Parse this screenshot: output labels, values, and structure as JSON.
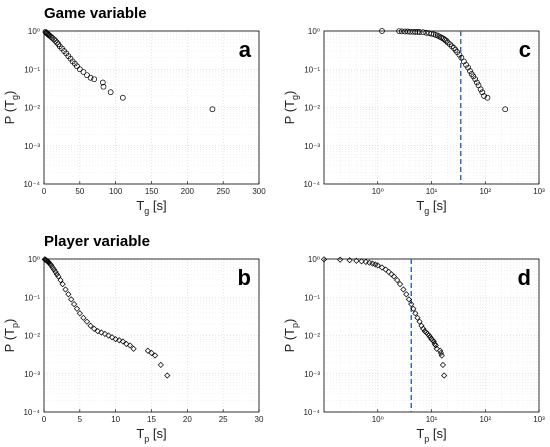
{
  "titles": {
    "game": "Game variable",
    "player": "Player variable"
  },
  "colors": {
    "marker_stroke": "#000000",
    "threshold_line": "#2a65b8",
    "grid": "#c9c9c9"
  },
  "chart_data": [
    {
      "id": "a",
      "letter": "a",
      "type": "scatter",
      "marker": "circle",
      "xscale": "linear",
      "yscale": "log",
      "xlim": [
        0,
        300
      ],
      "ylim": [
        0.0001,
        1
      ],
      "xticks": [
        0,
        50,
        100,
        150,
        200,
        250,
        300
      ],
      "xtick_labels": [
        "0",
        "50",
        "100",
        "150",
        "200",
        "250",
        "300"
      ],
      "yticks": [
        0.0001,
        0.001,
        0.01,
        0.1,
        1
      ],
      "ylabel_main": "P (T",
      "ylabel_sub": "g",
      "ylabel_end": ")",
      "xlabel_main": "T",
      "xlabel_sub": "g",
      "xlabel_end": " [s]",
      "grid": true,
      "x": [
        2,
        3,
        4,
        5,
        6,
        7,
        8,
        10,
        12,
        14,
        16,
        18,
        20,
        22,
        25,
        28,
        31,
        34,
        37,
        40,
        43,
        46,
        50,
        55,
        60,
        65,
        70,
        82,
        83,
        93,
        110,
        235
      ],
      "y": [
        0.95,
        0.9,
        0.87,
        0.84,
        0.81,
        0.78,
        0.75,
        0.7,
        0.65,
        0.6,
        0.55,
        0.5,
        0.45,
        0.4,
        0.35,
        0.3,
        0.26,
        0.22,
        0.19,
        0.16,
        0.14,
        0.12,
        0.1,
        0.085,
        0.07,
        0.06,
        0.055,
        0.045,
        0.035,
        0.025,
        0.018,
        0.009
      ]
    },
    {
      "id": "b",
      "letter": "b",
      "type": "scatter",
      "marker": "diamond",
      "xscale": "linear",
      "yscale": "log",
      "xlim": [
        0,
        30
      ],
      "ylim": [
        0.0001,
        1
      ],
      "xticks": [
        0,
        5,
        10,
        15,
        20,
        25,
        30
      ],
      "xtick_labels": [
        "0",
        "5",
        "10",
        "15",
        "20",
        "25",
        "30"
      ],
      "yticks": [
        0.0001,
        0.001,
        0.01,
        0.1,
        1
      ],
      "ylabel_main": "P (T",
      "ylabel_sub": "p",
      "ylabel_end": ")",
      "xlabel_main": "T",
      "xlabel_sub": "p",
      "xlabel_end": " [s]",
      "grid": true,
      "x": [
        0.1,
        0.2,
        0.3,
        0.4,
        0.5,
        0.6,
        0.7,
        0.8,
        0.9,
        1.0,
        1.2,
        1.4,
        1.6,
        1.8,
        2.0,
        2.3,
        2.6,
        3.0,
        3.4,
        3.8,
        4.2,
        4.6,
        5.0,
        5.5,
        6.0,
        6.5,
        7.0,
        7.5,
        8.0,
        8.5,
        9.0,
        9.5,
        10.0,
        10.5,
        11.0,
        11.5,
        12.0,
        12.5,
        14.5,
        15.0,
        15.5,
        16.3,
        17.2
      ],
      "y": [
        0.98,
        0.96,
        0.93,
        0.9,
        0.87,
        0.84,
        0.8,
        0.76,
        0.72,
        0.68,
        0.6,
        0.53,
        0.46,
        0.4,
        0.35,
        0.28,
        0.22,
        0.16,
        0.12,
        0.088,
        0.066,
        0.05,
        0.038,
        0.029,
        0.023,
        0.018,
        0.015,
        0.013,
        0.012,
        0.011,
        0.01,
        0.009,
        0.008,
        0.0075,
        0.007,
        0.006,
        0.0055,
        0.0045,
        0.004,
        0.0035,
        0.003,
        0.0017,
        0.0009
      ]
    },
    {
      "id": "c",
      "letter": "c",
      "type": "scatter",
      "marker": "circle",
      "xscale": "log",
      "yscale": "log",
      "xlim": [
        0.1,
        1000
      ],
      "ylim": [
        0.0001,
        1
      ],
      "xticks": [
        1,
        10,
        100,
        1000
      ],
      "yticks": [
        0.0001,
        0.001,
        0.01,
        0.1,
        1
      ],
      "ylabel_main": "P (T",
      "ylabel_sub": "g",
      "ylabel_end": ")",
      "xlabel_main": "T",
      "xlabel_sub": "g",
      "xlabel_end": " [s]",
      "grid": true,
      "threshold_x": 35,
      "x": [
        1.2,
        2.5,
        2.8,
        3.2,
        3.6,
        4.0,
        4.5,
        5,
        5.5,
        6,
        7,
        8,
        9,
        10,
        11,
        12,
        13,
        14,
        15,
        16,
        17,
        18,
        19,
        20,
        22,
        24,
        26,
        28,
        30,
        33,
        36,
        40,
        44,
        48,
        52,
        56,
        60,
        65,
        70,
        75,
        82,
        88,
        95,
        110,
        235
      ],
      "y": [
        1,
        0.99,
        0.98,
        0.97,
        0.97,
        0.96,
        0.96,
        0.95,
        0.95,
        0.94,
        0.93,
        0.9,
        0.88,
        0.85,
        0.82,
        0.79,
        0.76,
        0.72,
        0.68,
        0.65,
        0.62,
        0.58,
        0.55,
        0.5,
        0.45,
        0.4,
        0.36,
        0.32,
        0.28,
        0.24,
        0.2,
        0.16,
        0.13,
        0.11,
        0.09,
        0.075,
        0.065,
        0.055,
        0.045,
        0.038,
        0.03,
        0.025,
        0.02,
        0.018,
        0.009
      ]
    },
    {
      "id": "d",
      "letter": "d",
      "type": "scatter",
      "marker": "diamond",
      "xscale": "log",
      "yscale": "log",
      "xlim": [
        0.1,
        1000
      ],
      "ylim": [
        0.0001,
        1
      ],
      "xticks": [
        1,
        10,
        100,
        1000
      ],
      "yticks": [
        0.0001,
        0.001,
        0.01,
        0.1,
        1
      ],
      "ylabel_main": "P (T",
      "ylabel_sub": "p",
      "ylabel_end": ")",
      "xlabel_main": "T",
      "xlabel_sub": "p",
      "xlabel_end": " [s]",
      "grid": true,
      "threshold_x": 4.2,
      "x": [
        0.1,
        0.2,
        0.3,
        0.4,
        0.5,
        0.6,
        0.7,
        0.8,
        0.9,
        1.0,
        1.2,
        1.4,
        1.6,
        1.8,
        2.0,
        2.3,
        2.6,
        3.0,
        3.4,
        3.8,
        4.2,
        4.6,
        5.0,
        5.5,
        6.0,
        6.5,
        7.0,
        7.5,
        8.0,
        8.5,
        9.0,
        9.5,
        10.0,
        10.5,
        11.0,
        11.5,
        12.0,
        12.5,
        14.5,
        15.0,
        15.5,
        16.3,
        17.2
      ],
      "y": [
        0.98,
        0.96,
        0.93,
        0.9,
        0.87,
        0.84,
        0.8,
        0.76,
        0.72,
        0.68,
        0.6,
        0.53,
        0.46,
        0.4,
        0.35,
        0.28,
        0.22,
        0.16,
        0.12,
        0.088,
        0.066,
        0.05,
        0.038,
        0.029,
        0.023,
        0.018,
        0.015,
        0.013,
        0.012,
        0.011,
        0.01,
        0.009,
        0.008,
        0.0075,
        0.007,
        0.006,
        0.0055,
        0.0045,
        0.004,
        0.0035,
        0.003,
        0.0017,
        0.0009
      ]
    }
  ]
}
